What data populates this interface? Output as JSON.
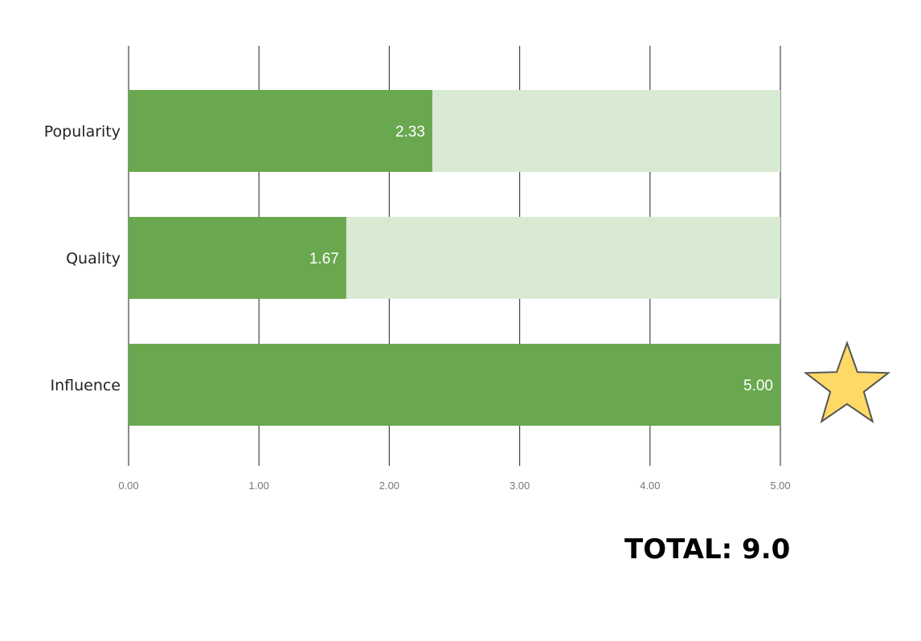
{
  "chart_data": {
    "type": "bar",
    "orientation": "horizontal",
    "stacked_background": true,
    "categories": [
      "Popularity",
      "Quality",
      "Influence"
    ],
    "values": [
      2.33,
      1.67,
      5.0
    ],
    "value_labels": [
      "2.33",
      "1.67",
      "5.00"
    ],
    "max_value": 5,
    "xlim": [
      0,
      5
    ],
    "x_ticks": [
      "0.00",
      "1.00",
      "2.00",
      "3.00",
      "4.00",
      "5.00"
    ],
    "grid": true,
    "title": "",
    "xlabel": "",
    "ylabel": "",
    "colors": {
      "bar": "#6aa84f",
      "remainder": "#d9ead3",
      "grid": "#444444",
      "star": "#ffd966"
    }
  },
  "annotations": {
    "star_icon": "star-icon",
    "star_category": "Influence",
    "total_label": "TOTAL: 9.0"
  }
}
